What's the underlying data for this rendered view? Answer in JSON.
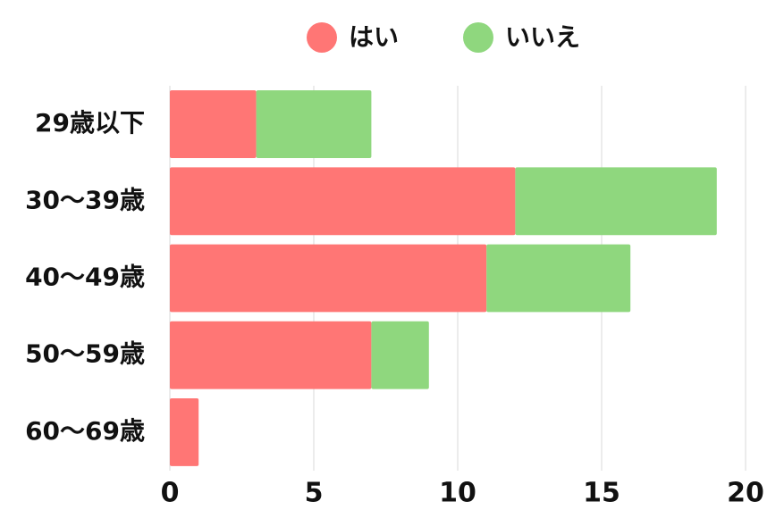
{
  "chart_data": {
    "type": "bar",
    "orientation": "horizontal",
    "stacked": true,
    "categories": [
      "29歳以下",
      "30～39歳",
      "40～49歳",
      "50～59歳",
      "60～69歳"
    ],
    "series": [
      {
        "name": "はい",
        "color": "#ff7675",
        "values": [
          3,
          12,
          11,
          7,
          1
        ]
      },
      {
        "name": "いいえ",
        "color": "#8fd77e",
        "values": [
          4,
          7,
          5,
          2,
          0
        ]
      }
    ],
    "xlim": [
      0,
      20
    ],
    "xticks": [
      0,
      5,
      10,
      15,
      20
    ],
    "grid": true,
    "legend": "top"
  }
}
